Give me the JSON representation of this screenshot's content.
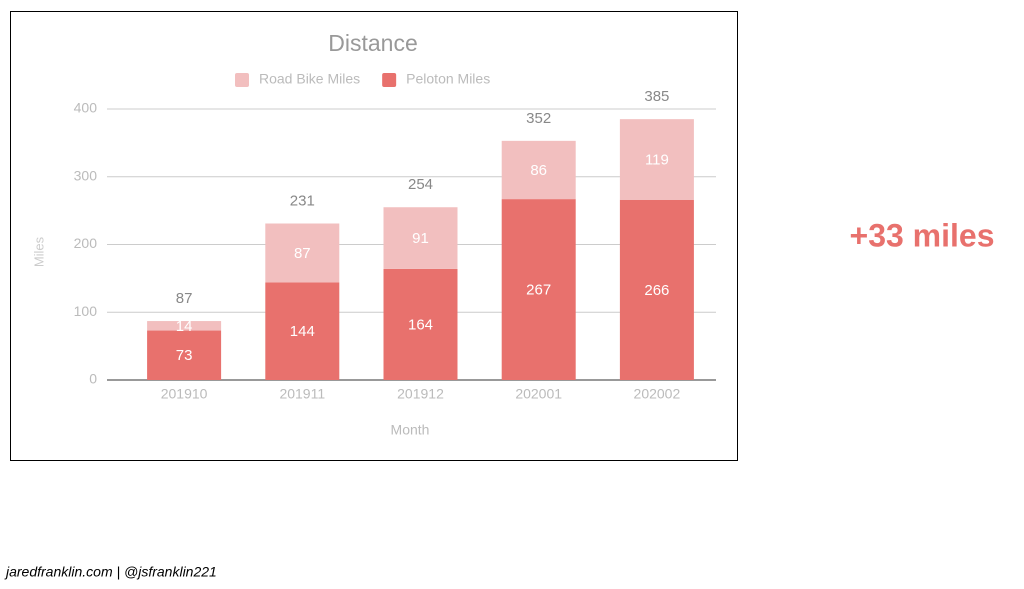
{
  "chart_data": {
    "type": "stacked_bar",
    "title": "Distance",
    "x_label": "Month",
    "y_label": "Miles",
    "categories": [
      "201910",
      "201911",
      "201912",
      "202001",
      "202002"
    ],
    "series": [
      {
        "name": "Road Bike Miles",
        "color": "#f2bfbf",
        "values": [
          14,
          87,
          91,
          86,
          119
        ]
      },
      {
        "name": "Peloton Miles",
        "color": "#e8716d",
        "values": [
          73,
          144,
          164,
          267,
          266
        ]
      }
    ],
    "totals": [
      87,
      231,
      254,
      352,
      385
    ],
    "ylim": [
      0,
      400
    ],
    "yticks": [
      0,
      100,
      200,
      300,
      400
    ],
    "grid": true,
    "legend": "top"
  },
  "annotation": "+33 miles",
  "footer": "jaredfranklin.com | @jsfranklin221"
}
